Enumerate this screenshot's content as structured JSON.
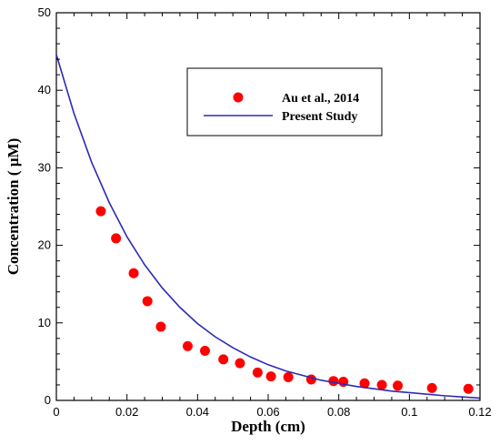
{
  "chart_data": {
    "type": "scatter",
    "title": "",
    "xlabel": "Depth (cm)",
    "ylabel": "Concentration ( µM)",
    "xlim": [
      0,
      0.12
    ],
    "ylim": [
      0,
      50
    ],
    "x_ticks": [
      "0",
      "0.02",
      "0.04",
      "0.06",
      "0.08",
      "0.1",
      "0.12"
    ],
    "y_ticks": [
      "0",
      "10",
      "20",
      "30",
      "40",
      "50"
    ],
    "grid": false,
    "legend_position": "top-right",
    "series": [
      {
        "name": "Au et al., 2014",
        "kind": "scatter",
        "color": "#ff0000",
        "marker": "circle",
        "x": [
          0.0126,
          0.0169,
          0.0219,
          0.0258,
          0.0296,
          0.0372,
          0.0421,
          0.0473,
          0.052,
          0.057,
          0.0608,
          0.0657,
          0.0722,
          0.0785,
          0.0813,
          0.0873,
          0.0922,
          0.0967,
          0.1064,
          0.1167
        ],
        "y": [
          24.4,
          20.9,
          16.4,
          12.8,
          9.5,
          7.0,
          6.4,
          5.3,
          4.8,
          3.6,
          3.1,
          3.0,
          2.7,
          2.5,
          2.4,
          2.2,
          2.0,
          1.9,
          1.6,
          1.5
        ]
      },
      {
        "name": "Present Study",
        "kind": "line",
        "color": "#2b2bb5",
        "x": [
          0,
          0.005,
          0.01,
          0.015,
          0.02,
          0.025,
          0.03,
          0.035,
          0.04,
          0.045,
          0.05,
          0.055,
          0.06,
          0.065,
          0.07,
          0.075,
          0.08,
          0.085,
          0.09,
          0.095,
          0.1,
          0.105,
          0.11,
          0.115,
          0.12
        ],
        "y": [
          44.6,
          37.0,
          30.7,
          25.5,
          21.1,
          17.5,
          14.5,
          12.0,
          9.9,
          8.2,
          6.8,
          5.6,
          4.6,
          3.8,
          3.2,
          2.6,
          2.2,
          1.8,
          1.5,
          1.2,
          1.0,
          0.8,
          0.6,
          0.45,
          0.3
        ]
      }
    ]
  }
}
